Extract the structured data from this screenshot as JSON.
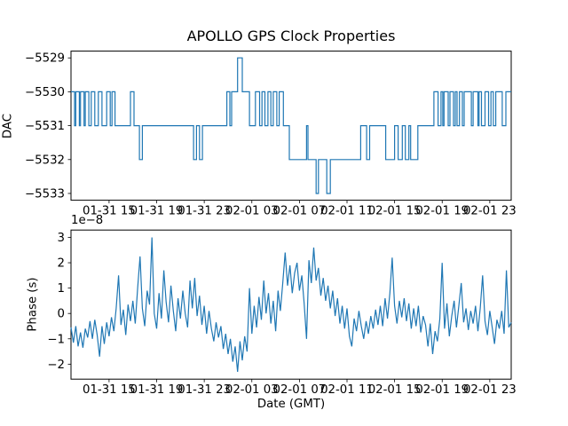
{
  "figure": {
    "background": "#ffffff",
    "line_color": "#1f77b4",
    "spine_color": "#000000",
    "text_color": "#000000"
  },
  "chart_data": [
    {
      "type": "line",
      "subplot": "top",
      "title": "APOLLO GPS Clock Properties",
      "ylabel": "DAC",
      "draw_style": "steps-post",
      "grid": false,
      "legend": null,
      "x_units": "hours since 01-31 00:00 (GMT)",
      "xlim": [
        11.8,
        48.8
      ],
      "ylim": [
        -5533.2,
        -5528.8
      ],
      "yticks": [
        -5529,
        -5530,
        -5531,
        -5532,
        -5533
      ],
      "ytick_labels": [
        "−5529",
        "−5530",
        "−5531",
        "−5532",
        "−5533"
      ],
      "xticks": [
        15,
        19,
        23,
        27,
        31,
        35,
        39,
        43,
        47
      ],
      "xtick_labels": [
        "01-31 15",
        "01-31 19",
        "01-31 23",
        "02-01 03",
        "02-01 07",
        "02-01 11",
        "02-01 15",
        "02-01 19",
        "02-01 23"
      ],
      "steps": [
        [
          11.8,
          -5530
        ],
        [
          12.1,
          -5531
        ],
        [
          12.2,
          -5530
        ],
        [
          12.5,
          -5531
        ],
        [
          12.6,
          -5530
        ],
        [
          12.9,
          -5531
        ],
        [
          13.0,
          -5530
        ],
        [
          13.3,
          -5531
        ],
        [
          13.5,
          -5530
        ],
        [
          13.8,
          -5531
        ],
        [
          14.1,
          -5530
        ],
        [
          14.4,
          -5531
        ],
        [
          14.8,
          -5530
        ],
        [
          15.1,
          -5531
        ],
        [
          15.25,
          -5530
        ],
        [
          15.5,
          -5531
        ],
        [
          16.8,
          -5530
        ],
        [
          17.1,
          -5531
        ],
        [
          17.55,
          -5532
        ],
        [
          17.8,
          -5531
        ],
        [
          22.1,
          -5532
        ],
        [
          22.35,
          -5531
        ],
        [
          22.6,
          -5532
        ],
        [
          22.85,
          -5531
        ],
        [
          24.9,
          -5530
        ],
        [
          25.15,
          -5531
        ],
        [
          25.3,
          -5530
        ],
        [
          25.8,
          -5529
        ],
        [
          26.2,
          -5530
        ],
        [
          26.8,
          -5531
        ],
        [
          27.3,
          -5530
        ],
        [
          27.65,
          -5531
        ],
        [
          27.85,
          -5530
        ],
        [
          28.1,
          -5531
        ],
        [
          28.35,
          -5530
        ],
        [
          28.6,
          -5531
        ],
        [
          28.8,
          -5530
        ],
        [
          29.1,
          -5531
        ],
        [
          29.3,
          -5530
        ],
        [
          29.65,
          -5531
        ],
        [
          30.15,
          -5532
        ],
        [
          31.6,
          -5531
        ],
        [
          31.72,
          -5532
        ],
        [
          32.4,
          -5533
        ],
        [
          32.6,
          -5532
        ],
        [
          33.3,
          -5533
        ],
        [
          33.6,
          -5532
        ],
        [
          36.15,
          -5531
        ],
        [
          36.65,
          -5532
        ],
        [
          36.9,
          -5531
        ],
        [
          38.25,
          -5532
        ],
        [
          39.0,
          -5531
        ],
        [
          39.3,
          -5532
        ],
        [
          39.65,
          -5531
        ],
        [
          39.9,
          -5532
        ],
        [
          40.2,
          -5531
        ],
        [
          40.35,
          -5532
        ],
        [
          40.95,
          -5531
        ],
        [
          42.3,
          -5530
        ],
        [
          42.65,
          -5531
        ],
        [
          42.9,
          -5530
        ],
        [
          43.05,
          -5531
        ],
        [
          43.15,
          -5530
        ],
        [
          43.5,
          -5531
        ],
        [
          43.65,
          -5530
        ],
        [
          43.95,
          -5531
        ],
        [
          44.1,
          -5530
        ],
        [
          44.25,
          -5531
        ],
        [
          44.45,
          -5530
        ],
        [
          44.7,
          -5531
        ],
        [
          44.85,
          -5530
        ],
        [
          45.45,
          -5531
        ],
        [
          45.6,
          -5530
        ],
        [
          46.0,
          -5531
        ],
        [
          46.1,
          -5530
        ],
        [
          46.3,
          -5531
        ],
        [
          46.6,
          -5530
        ],
        [
          46.9,
          -5531
        ],
        [
          47.1,
          -5530
        ],
        [
          47.3,
          -5531
        ],
        [
          47.5,
          -5530
        ],
        [
          48.05,
          -5531
        ],
        [
          48.35,
          -5530
        ]
      ]
    },
    {
      "type": "line",
      "subplot": "bottom",
      "ylabel": "Phase (s)",
      "xlabel": "Date (GMT)",
      "offset_label": "1e−8",
      "y_scale_factor": 1e-08,
      "grid": false,
      "legend": null,
      "x_units": "hours since 01-31 00:00 (GMT)",
      "xlim": [
        11.8,
        48.8
      ],
      "ylim": [
        -2.59,
        3.29
      ],
      "yticks": [
        -2,
        -1,
        0,
        1,
        2,
        3
      ],
      "ytick_labels": [
        "−2",
        "−1",
        "0",
        "1",
        "2",
        "3"
      ],
      "xticks": [
        15,
        19,
        23,
        27,
        31,
        35,
        39,
        43,
        47
      ],
      "xtick_labels": [
        "01-31 15",
        "01-31 19",
        "01-31 23",
        "02-01 03",
        "02-01 07",
        "02-01 11",
        "02-01 15",
        "02-01 19",
        "02-01 23"
      ],
      "x_start": 11.8,
      "dx": 0.2,
      "values": [
        -0.55,
        -1.15,
        -0.5,
        -1.3,
        -0.75,
        -1.35,
        -0.6,
        -0.95,
        -0.3,
        -1.0,
        -0.25,
        -0.85,
        -1.7,
        -0.5,
        -1.2,
        -0.35,
        -0.9,
        -0.15,
        -0.7,
        0.2,
        1.5,
        -0.45,
        0.15,
        -0.85,
        0.35,
        -0.3,
        0.5,
        -0.4,
        1.0,
        2.25,
        0.2,
        -0.5,
        0.9,
        0.35,
        3.0,
        0.0,
        -0.6,
        0.8,
        -0.2,
        1.7,
        0.45,
        -0.35,
        1.1,
        0.1,
        -0.7,
        0.6,
        -0.2,
        0.9,
        0.0,
        -0.55,
        1.3,
        0.2,
        1.4,
        -0.1,
        0.7,
        -0.45,
        0.3,
        -0.8,
        0.1,
        -0.6,
        -1.1,
        -0.35,
        -0.95,
        -0.5,
        -1.4,
        -0.8,
        -1.6,
        -1.0,
        -1.9,
        -1.3,
        -2.3,
        -1.1,
        -1.85,
        -0.9,
        -1.5,
        1.0,
        -0.8,
        0.3,
        -0.55,
        0.65,
        -0.25,
        1.3,
        0.0,
        0.8,
        -0.4,
        0.5,
        -0.7,
        0.9,
        0.1,
        1.2,
        2.4,
        1.1,
        1.9,
        0.8,
        1.6,
        2.0,
        0.9,
        1.5,
        0.4,
        -1.0,
        2.1,
        1.2,
        2.6,
        1.3,
        1.8,
        0.7,
        1.4,
        0.5,
        1.1,
        0.2,
        0.9,
        -0.1,
        0.6,
        -0.4,
        0.3,
        -0.6,
        0.2,
        -0.9,
        -1.3,
        -0.2,
        -0.7,
        0.1,
        -0.5,
        -1.0,
        -0.3,
        -0.8,
        -0.1,
        -0.6,
        0.15,
        -0.45,
        0.3,
        -0.5,
        0.6,
        -0.2,
        0.8,
        2.2,
        0.3,
        -0.4,
        0.5,
        -0.15,
        0.6,
        -0.3,
        0.4,
        -0.6,
        0.2,
        -0.5,
        0.3,
        -0.75,
        -0.1,
        -0.45,
        -1.3,
        -0.4,
        -1.6,
        -0.7,
        -1.1,
        -0.2,
        2.0,
        -0.6,
        0.4,
        -0.9,
        -0.1,
        0.5,
        -0.55,
        0.3,
        1.2,
        -0.35,
        0.2,
        -0.65,
        0.1,
        -0.4,
        0.3,
        -0.7,
        0.2,
        1.5,
        -0.3,
        -0.85,
        0.1,
        -0.55,
        -1.2,
        -0.25,
        -0.6,
        0.1,
        -0.8,
        1.7,
        -0.55,
        -0.35
      ]
    }
  ]
}
